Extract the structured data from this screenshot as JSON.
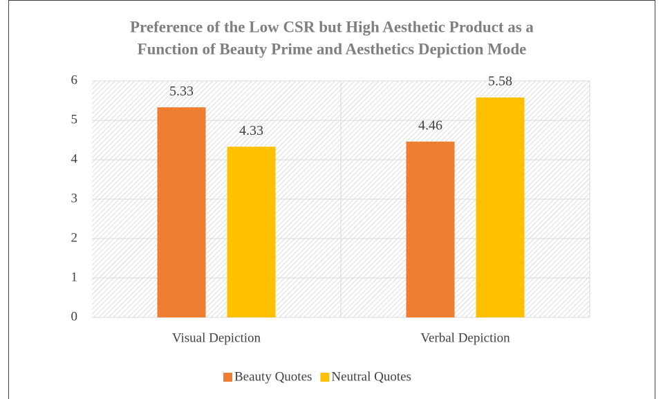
{
  "chart_data": {
    "type": "bar",
    "title": [
      "Preference of the Low CSR but High Aesthetic Product as a",
      "Function of Beauty Prime and Aesthetics Depiction Mode"
    ],
    "categories": [
      "Visual Depiction",
      "Verbal Depiction"
    ],
    "series": [
      {
        "name": "Beauty Quotes",
        "color": "#ed7d31",
        "values": [
          5.33,
          4.46
        ]
      },
      {
        "name": "Neutral Quotes",
        "color": "#ffc000",
        "values": [
          4.33,
          5.58
        ]
      }
    ],
    "ylim": [
      0,
      6
    ],
    "yticks": [
      0,
      1,
      2,
      3,
      4,
      5,
      6
    ],
    "grid": true,
    "legend": "bottom"
  }
}
